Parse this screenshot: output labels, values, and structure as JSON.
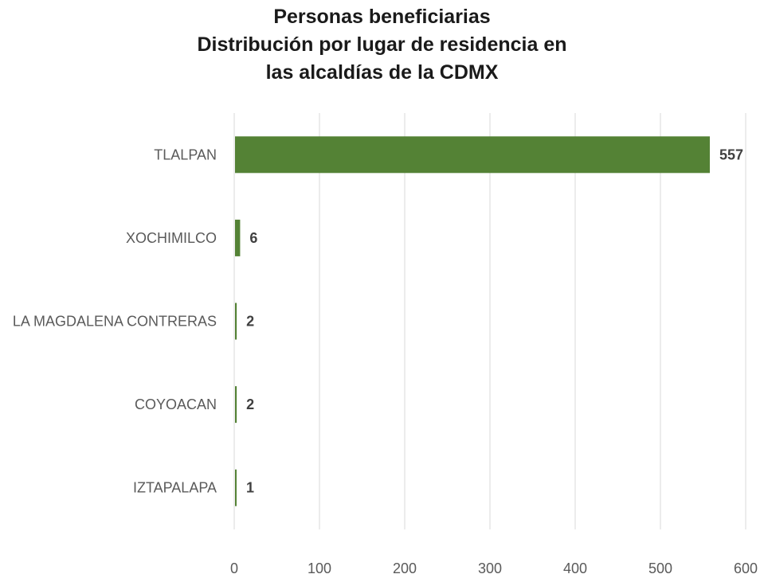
{
  "title_lines": [
    "Personas beneficiarias",
    "Distribución por lugar de residencia en",
    "las alcaldías de la CDMX"
  ],
  "colors": {
    "bar": "#548235",
    "grid": "#d9d9d9",
    "text": "#5a5a5a",
    "title": "#1a1a1a"
  },
  "chart_data": {
    "type": "bar",
    "orientation": "horizontal",
    "title": "Personas beneficiarias Distribución por lugar de residencia en las alcaldías de la CDMX",
    "categories": [
      "TLALPAN",
      "XOCHIMILCO",
      "LA MAGDALENA CONTRERAS",
      "COYOACAN",
      "IZTAPALAPA"
    ],
    "values": [
      557,
      6,
      2,
      2,
      1
    ],
    "xlabel": "",
    "ylabel": "",
    "xlim": [
      0,
      600
    ],
    "x_ticks": [
      0,
      100,
      200,
      300,
      400,
      500,
      600
    ],
    "grid": "vertical",
    "data_labels": true,
    "legend": "none"
  }
}
